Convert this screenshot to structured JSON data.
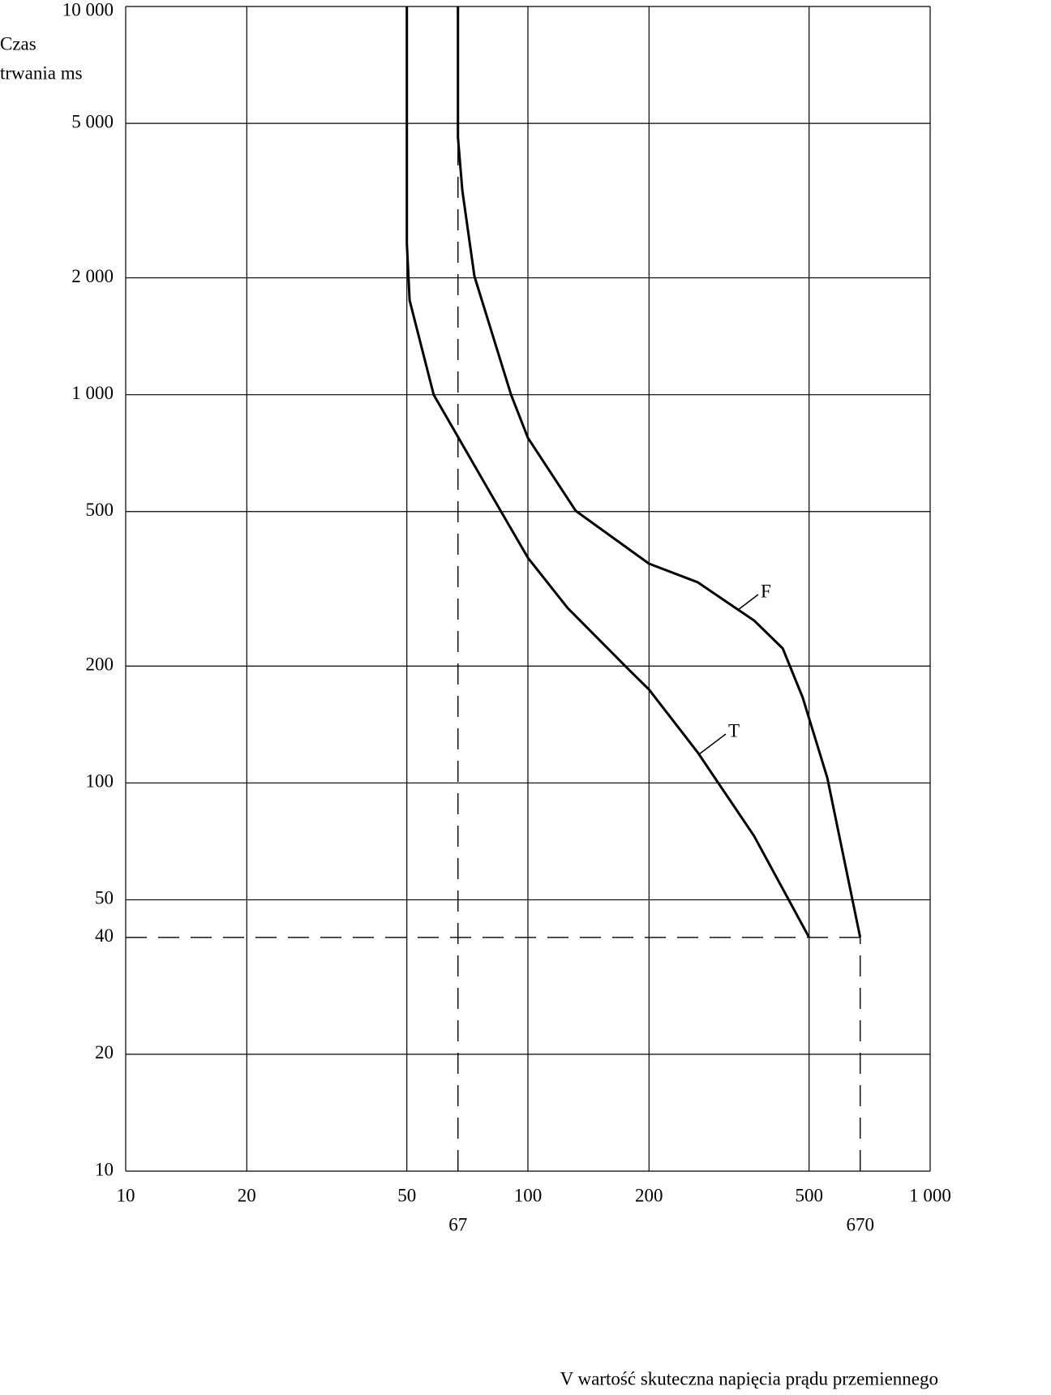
{
  "chart_data": {
    "type": "line",
    "ylabel": [
      "Czas",
      "trwania ms"
    ],
    "xlabel": "V wartość skuteczna napięcia prądu przemiennego",
    "log_x": true,
    "log_y": true,
    "grid": true,
    "xlim": [
      10,
      1000
    ],
    "ylim": [
      10,
      10000
    ],
    "xticks": [
      10,
      20,
      50,
      100,
      200,
      500,
      {
        "value": 1000,
        "label": "1 000"
      }
    ],
    "yticks": [
      10,
      20,
      50,
      100,
      200,
      500,
      {
        "value": 1000,
        "label": "1 000"
      },
      {
        "value": 2000,
        "label": "2 000"
      },
      {
        "value": 5000,
        "label": "5 000"
      },
      {
        "value": 10000,
        "label": "10 000"
      }
    ],
    "reference_lines": [
      {
        "axis": "x",
        "value": 67,
        "label": "67"
      },
      {
        "axis": "x",
        "value": 670,
        "label": "670"
      },
      {
        "axis": "y",
        "value": 40,
        "label": "40"
      }
    ],
    "series": [
      {
        "name": "T",
        "color": "#000000",
        "x": [
          50,
          50,
          50.8,
          58.3,
          78.9,
          100,
          125.6,
          178,
          200,
          264,
          365,
          500
        ],
        "values": [
          10000,
          2450,
          1750,
          1000,
          580,
          380,
          282,
          196,
          174,
          120,
          73,
          40
        ]
      },
      {
        "name": "F",
        "color": "#000000",
        "x": [
          67,
          67,
          68.7,
          73.6,
          90.8,
          100,
          131.5,
          200,
          264,
          365,
          430,
          482,
          555,
          670
        ],
        "values": [
          10000,
          4600,
          3360,
          2020,
          1000,
          774,
          502,
          367,
          329,
          262,
          222,
          166,
          103,
          40
        ]
      }
    ]
  }
}
